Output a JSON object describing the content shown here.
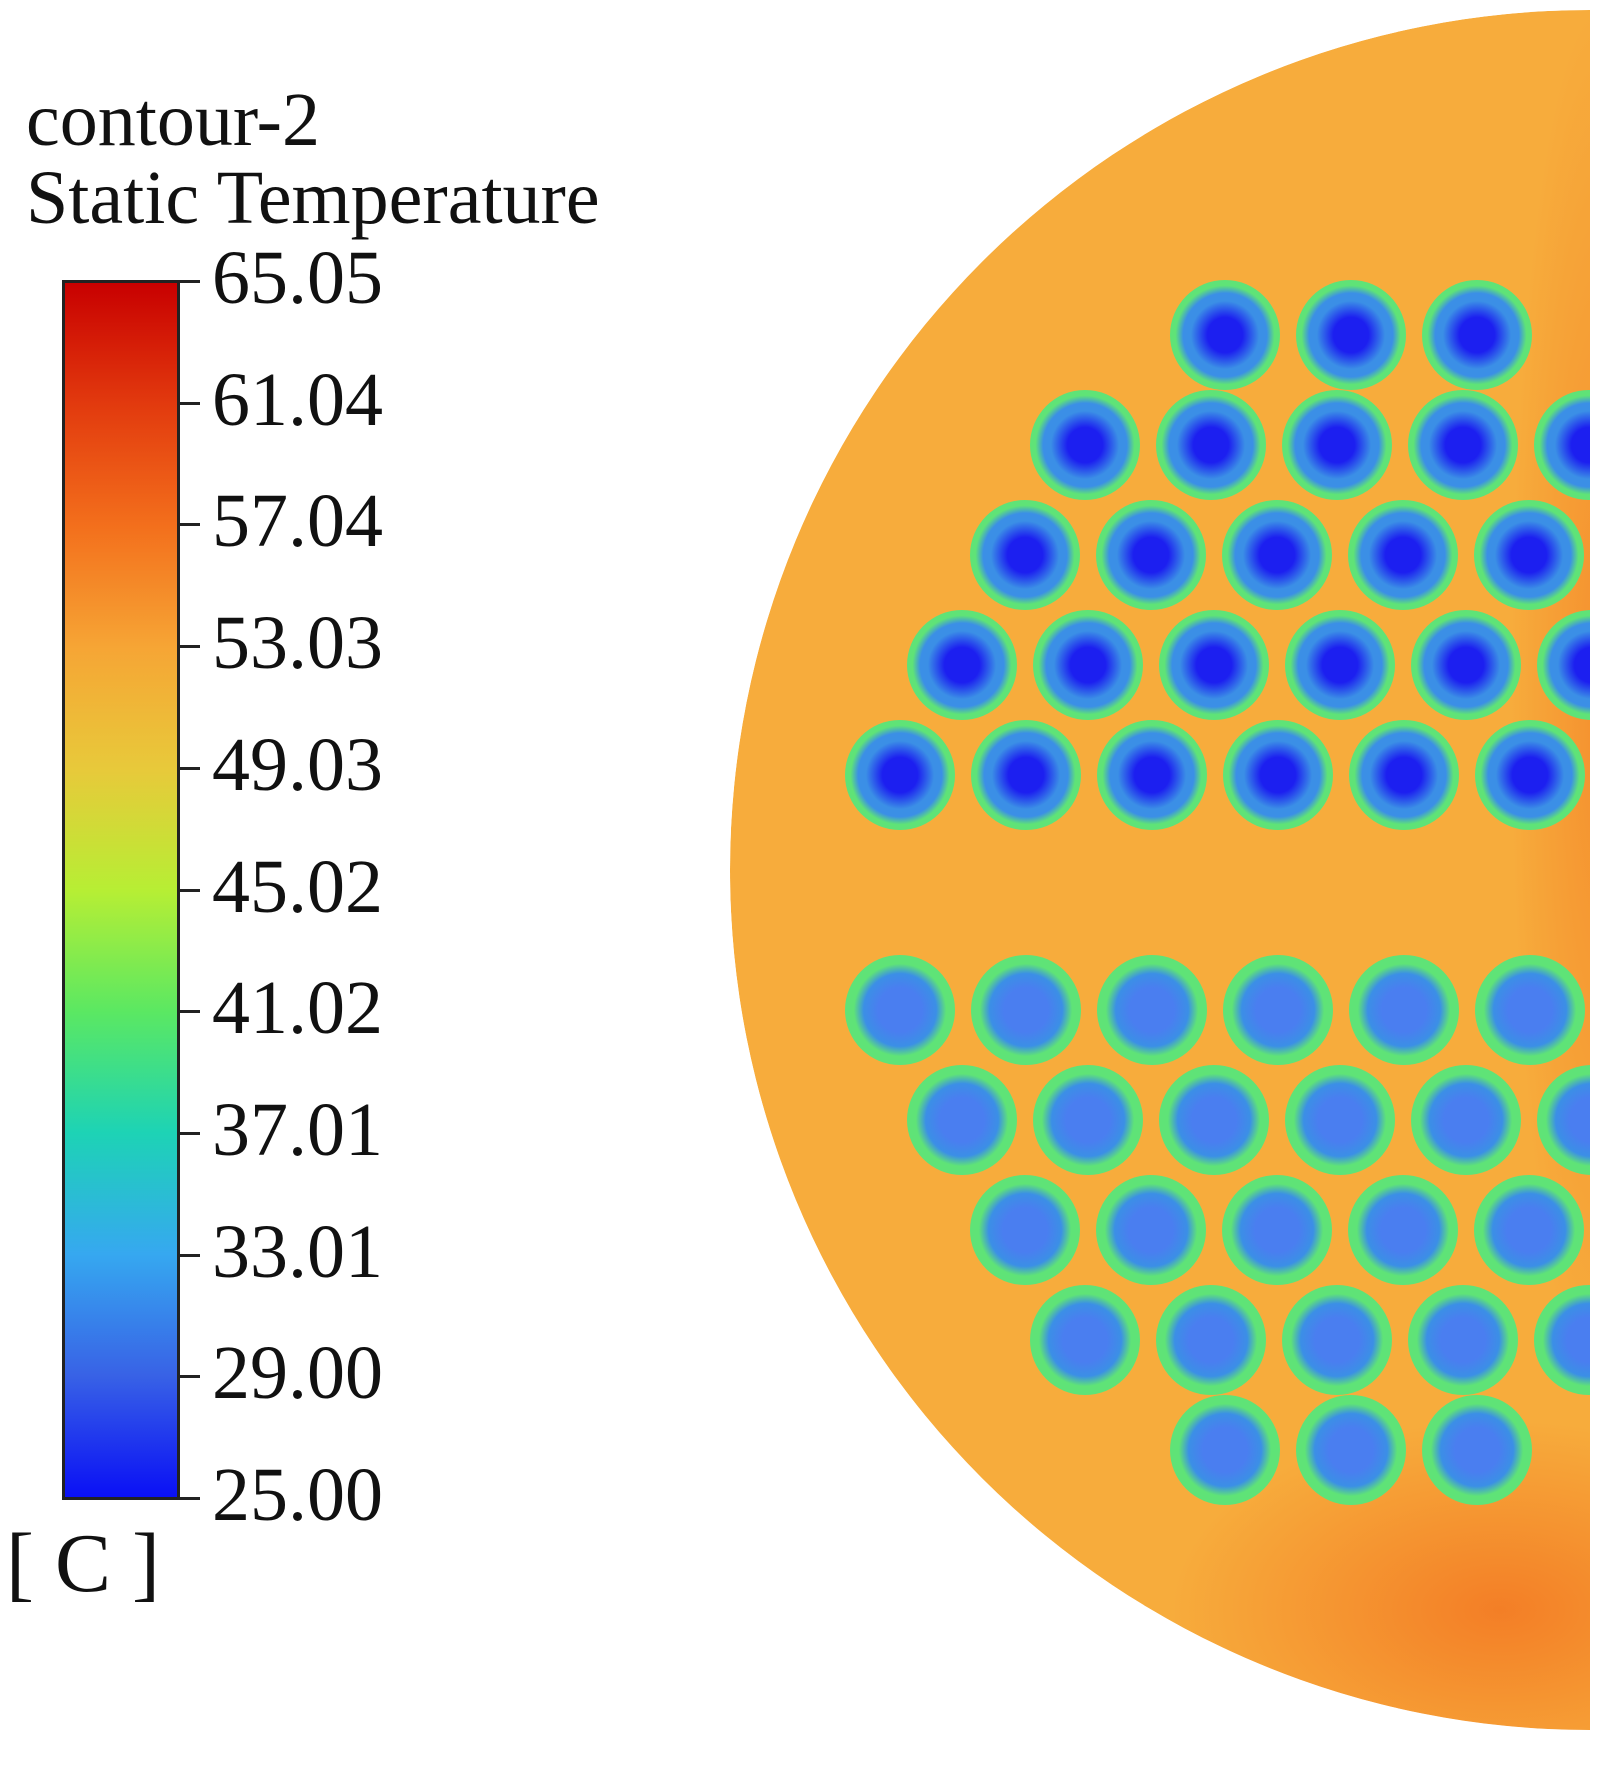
{
  "legend": {
    "title_line1": "contour-2",
    "title_line2": "Static Temperature",
    "unit": "[ C ]",
    "ticks": [
      "65.05",
      "61.04",
      "57.04",
      "53.03",
      "49.03",
      "45.02",
      "41.02",
      "37.01",
      "33.01",
      "29.00",
      "25.00"
    ],
    "gradient_colors": [
      "#c80000",
      "#e23a0e",
      "#f36f1c",
      "#f6a535",
      "#e8c93a",
      "#b7ee34",
      "#5be862",
      "#1dd3b5",
      "#36a8f0",
      "#3862e6",
      "#0a10f5"
    ]
  },
  "contour": {
    "background_color": "#f7ac3c",
    "hot_zone_color": "#f37c25",
    "tube_edge_color": "#5fe377",
    "tube_ring_color": "#3b8fe6",
    "upper_core_color": "#1c1ff0",
    "lower_core_color": "#4a7ef0",
    "upper_rows": [
      3,
      5,
      5,
      6,
      6
    ],
    "lower_rows": [
      6,
      6,
      5,
      5,
      3
    ]
  }
}
